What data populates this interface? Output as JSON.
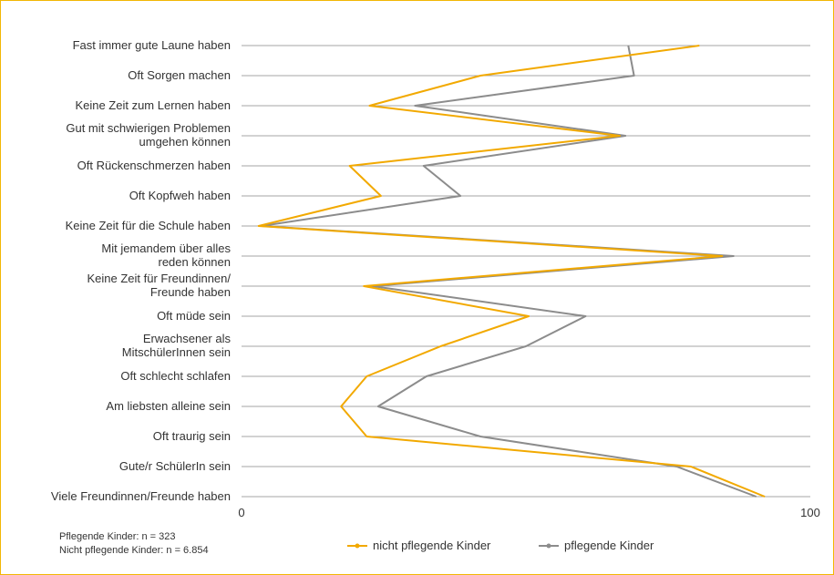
{
  "chart_data": {
    "type": "line",
    "orientation": "horizontal",
    "categories": [
      "Fast immer gute Laune haben",
      "Oft Sorgen machen",
      "Keine Zeit zum Lernen haben",
      "Gut mit schwierigen Problemen umgehen können",
      "Oft Rückenschmerzen haben",
      "Oft Kopfweh haben",
      "Keine Zeit für die Schule haben",
      "Mit jemandem über alles reden können",
      "Keine Zeit für Freundinnen/ Freunde haben",
      "Oft müde sein",
      "Erwachsener als MitschülerInnen sein",
      "Oft schlecht schlafen",
      "Am liebsten alleine sein",
      "Oft traurig sein",
      "Gute/r SchülerIn sein",
      "Viele Freundinnen/Freunde haben"
    ],
    "category_lines": [
      [
        "Fast immer gute Laune haben"
      ],
      [
        "Oft Sorgen machen"
      ],
      [
        "Keine Zeit zum Lernen haben"
      ],
      [
        "Gut mit schwierigen Problemen",
        "umgehen können"
      ],
      [
        "Oft Rückenschmerzen haben"
      ],
      [
        "Oft Kopfweh haben"
      ],
      [
        "Keine Zeit für die Schule haben"
      ],
      [
        "Mit jemandem über alles",
        "reden können"
      ],
      [
        "Keine Zeit für Freundinnen/",
        "Freunde haben"
      ],
      [
        "Oft müde sein"
      ],
      [
        "Erwachsener als",
        "MitschülerInnen sein"
      ],
      [
        "Oft schlecht schlafen"
      ],
      [
        "Am liebsten alleine sein"
      ],
      [
        "Oft traurig sein"
      ],
      [
        "Gute/r SchülerIn sein"
      ],
      [
        "Viele Freundinnen/Freunde haben"
      ]
    ],
    "series": [
      {
        "name": "nicht pflegende Kinder",
        "color": "#f2a900",
        "values": [
          80.5,
          42,
          22.5,
          66.5,
          19,
          24.5,
          3,
          84.5,
          21.5,
          50.5,
          35,
          22,
          17.5,
          22,
          79,
          92
        ]
      },
      {
        "name": "pflegende Kinder",
        "color": "#8c8c8c",
        "values": [
          68,
          69,
          30.5,
          67.5,
          32,
          38.5,
          3.5,
          86.5,
          23,
          60.5,
          50,
          32.5,
          24,
          42,
          76.5,
          90.5
        ]
      }
    ],
    "xlim": [
      0,
      100
    ],
    "xticks": [
      0,
      100
    ],
    "grid": "horizontal",
    "legend": "bottom",
    "title": "",
    "xlabel": "",
    "ylabel": ""
  },
  "notes": {
    "line1": "Pflegende Kinder:  n = 323",
    "line2": "Nicht pflegende Kinder:  n = 6.854"
  }
}
